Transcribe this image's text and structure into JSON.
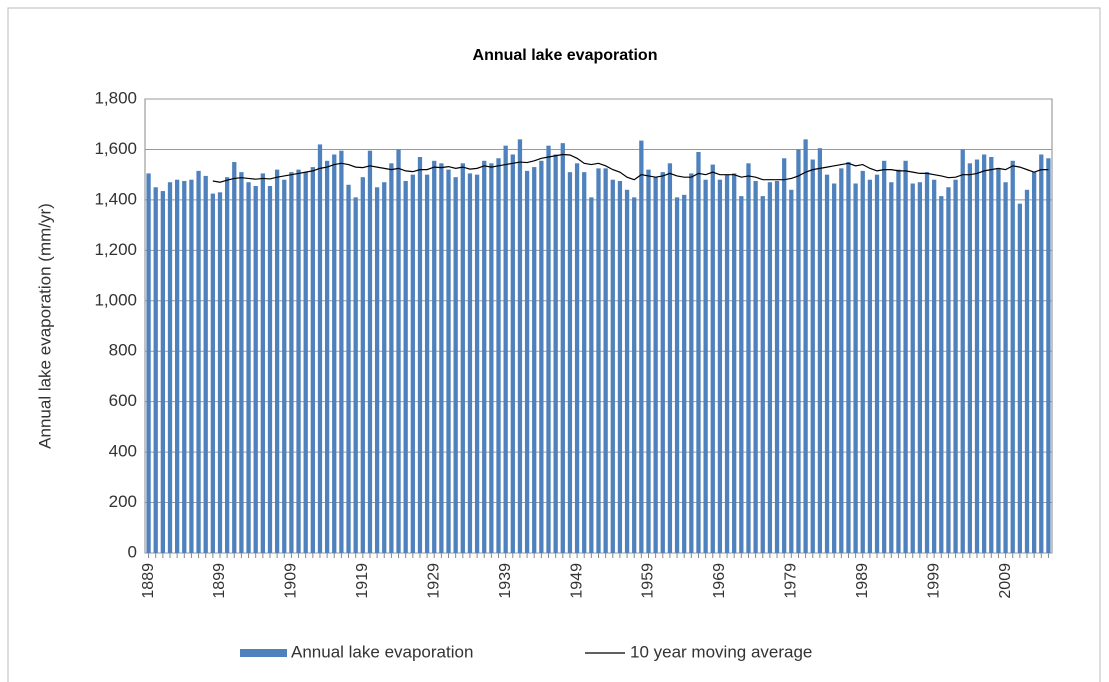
{
  "chart_data": {
    "type": "bar",
    "title": "Annual lake evaporation",
    "y_label": "Annual lake evaporation (mm/yr)",
    "categories": [
      "1889",
      null,
      null,
      null,
      null,
      null,
      null,
      null,
      null,
      null,
      "1899",
      null,
      null,
      null,
      null,
      null,
      null,
      null,
      null,
      null,
      "1909",
      null,
      null,
      null,
      null,
      null,
      null,
      null,
      null,
      null,
      "1919",
      null,
      null,
      null,
      null,
      null,
      null,
      null,
      null,
      null,
      "1929",
      null,
      null,
      null,
      null,
      null,
      null,
      null,
      null,
      null,
      "1939",
      null,
      null,
      null,
      null,
      null,
      null,
      null,
      null,
      null,
      "1949",
      null,
      null,
      null,
      null,
      null,
      null,
      null,
      null,
      null,
      "1959",
      null,
      null,
      null,
      null,
      null,
      null,
      null,
      null,
      null,
      "1969",
      null,
      null,
      null,
      null,
      null,
      null,
      null,
      null,
      null,
      "1979",
      null,
      null,
      null,
      null,
      null,
      null,
      null,
      null,
      null,
      "1989",
      null,
      null,
      null,
      null,
      null,
      null,
      null,
      null,
      null,
      "1999",
      null,
      null,
      null,
      null,
      null,
      null,
      null,
      null,
      null,
      "2009",
      null,
      null,
      null,
      null,
      null,
      null
    ],
    "series": [
      {
        "name": "Annual lake evaporation",
        "type": "bar",
        "color": "#4f81bd",
        "values": [
          1505,
          1450,
          1435,
          1470,
          1480,
          1475,
          1480,
          1515,
          1495,
          1425,
          1430,
          1490,
          1550,
          1510,
          1470,
          1455,
          1505,
          1455,
          1520,
          1480,
          1510,
          1520,
          1510,
          1530,
          1620,
          1555,
          1580,
          1595,
          1460,
          1410,
          1490,
          1595,
          1450,
          1470,
          1545,
          1600,
          1475,
          1500,
          1570,
          1500,
          1555,
          1545,
          1520,
          1490,
          1545,
          1505,
          1500,
          1555,
          1545,
          1565,
          1615,
          1580,
          1640,
          1515,
          1530,
          1555,
          1615,
          1580,
          1625,
          1510,
          1545,
          1510,
          1410,
          1525,
          1525,
          1480,
          1475,
          1440,
          1410,
          1635,
          1520,
          1490,
          1510,
          1545,
          1410,
          1420,
          1505,
          1590,
          1480,
          1540,
          1480,
          1500,
          1505,
          1415,
          1545,
          1475,
          1415,
          1470,
          1475,
          1565,
          1440,
          1600,
          1640,
          1560,
          1605,
          1500,
          1465,
          1525,
          1550,
          1465,
          1515,
          1480,
          1500,
          1555,
          1470,
          1520,
          1555,
          1465,
          1470,
          1510,
          1480,
          1415,
          1450,
          1480,
          1600,
          1545,
          1560,
          1580,
          1570,
          1525,
          1470,
          1555,
          1385,
          1440,
          1510,
          1580,
          1565
        ]
      },
      {
        "name": "10 year moving average",
        "type": "line",
        "color": "#000000",
        "values": [
          null,
          null,
          null,
          null,
          null,
          null,
          null,
          null,
          null,
          1475,
          1470,
          1478,
          1485,
          1488,
          1485,
          1482,
          1485,
          1483,
          1490,
          1495,
          1500,
          1505,
          1510,
          1515,
          1525,
          1530,
          1540,
          1545,
          1540,
          1530,
          1528,
          1535,
          1530,
          1525,
          1520,
          1525,
          1515,
          1512,
          1520,
          1520,
          1530,
          1528,
          1532,
          1525,
          1530,
          1522,
          1525,
          1535,
          1530,
          1535,
          1540,
          1545,
          1550,
          1548,
          1555,
          1565,
          1570,
          1575,
          1580,
          1578,
          1565,
          1545,
          1540,
          1545,
          1535,
          1520,
          1510,
          1490,
          1480,
          1500,
          1495,
          1490,
          1495,
          1505,
          1495,
          1490,
          1490,
          1505,
          1500,
          1510,
          1500,
          1500,
          1500,
          1490,
          1495,
          1490,
          1480,
          1480,
          1480,
          1480,
          1485,
          1495,
          1510,
          1520,
          1525,
          1530,
          1535,
          1540,
          1545,
          1535,
          1540,
          1525,
          1515,
          1520,
          1520,
          1515,
          1515,
          1510,
          1505,
          1505,
          1500,
          1495,
          1488,
          1490,
          1500,
          1500,
          1505,
          1515,
          1520,
          1525,
          1520,
          1535,
          1530,
          1520,
          1510,
          1520,
          1520
        ]
      }
    ],
    "ylim": [
      0,
      1800
    ],
    "yticks": [
      0,
      200,
      400,
      600,
      800,
      {
        "value": 1000,
        "label": "1,000"
      },
      {
        "value": 1200,
        "label": "1,200"
      },
      {
        "value": 1400,
        "label": "1,400"
      },
      {
        "value": 1600,
        "label": "1,600"
      },
      {
        "value": 1800,
        "label": "1,800"
      }
    ],
    "grid": true
  }
}
